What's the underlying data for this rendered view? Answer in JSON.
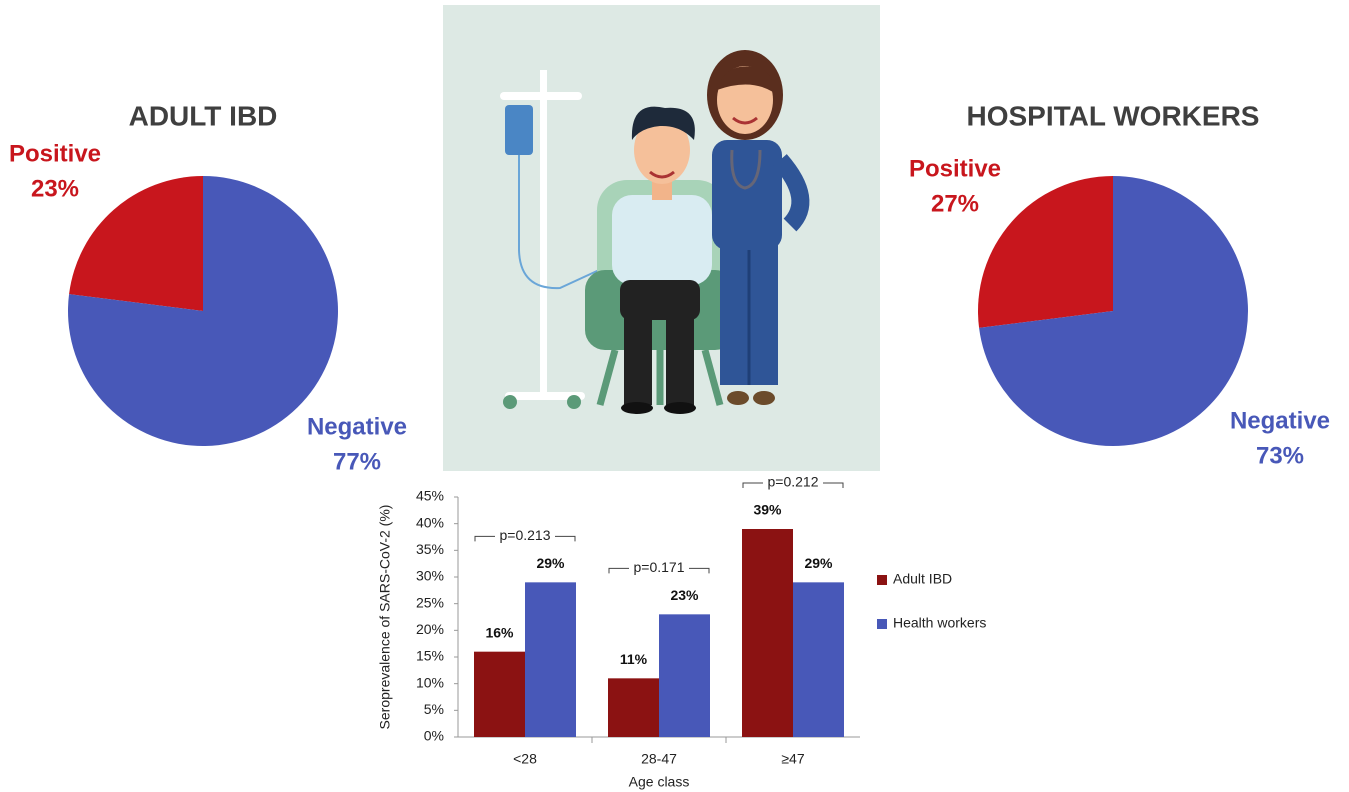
{
  "chart_data": [
    {
      "type": "pie",
      "title": "ADULT IBD",
      "categories": [
        "Positive",
        "Negative"
      ],
      "values": [
        23,
        77
      ],
      "value_labels": [
        "23%",
        "77%"
      ],
      "colors": [
        "#c8161d",
        "#4858b8"
      ]
    },
    {
      "type": "pie",
      "title": "HOSPITAL WORKERS",
      "categories": [
        "Positive",
        "Negative"
      ],
      "values": [
        27,
        73
      ],
      "value_labels": [
        "27%",
        "73%"
      ],
      "colors": [
        "#c8161d",
        "#4858b8"
      ]
    },
    {
      "type": "bar",
      "y_label": "Seroprevalence of SARS-CoV-2 (%)",
      "x_label": "Age class",
      "categories": [
        "<28",
        "28-47",
        "≥47"
      ],
      "series": [
        {
          "name": "Adult IBD",
          "color": "#8b1212",
          "values": [
            16,
            11,
            39
          ],
          "value_labels": [
            "16%",
            "11%",
            "39%"
          ]
        },
        {
          "name": "Health workers",
          "color": "#4858b8",
          "values": [
            29,
            23,
            29
          ],
          "value_labels": [
            "29%",
            "23%",
            "29%"
          ]
        }
      ],
      "annotations": [
        "p=0.213",
        "p=0.171",
        "p=0.212"
      ],
      "ylim": [
        0,
        45
      ],
      "yticks": [
        {
          "value": 0,
          "label": "0%"
        },
        {
          "value": 5,
          "label": "5%"
        },
        {
          "value": 10,
          "label": "10%"
        },
        {
          "value": 15,
          "label": "15%"
        },
        {
          "value": 20,
          "label": "20%"
        },
        {
          "value": 25,
          "label": "25%"
        },
        {
          "value": 30,
          "label": "30%"
        },
        {
          "value": 35,
          "label": "35%"
        },
        {
          "value": 40,
          "label": "40%"
        },
        {
          "value": 45,
          "label": "45%"
        }
      ],
      "grid": false,
      "legend": "right"
    }
  ]
}
